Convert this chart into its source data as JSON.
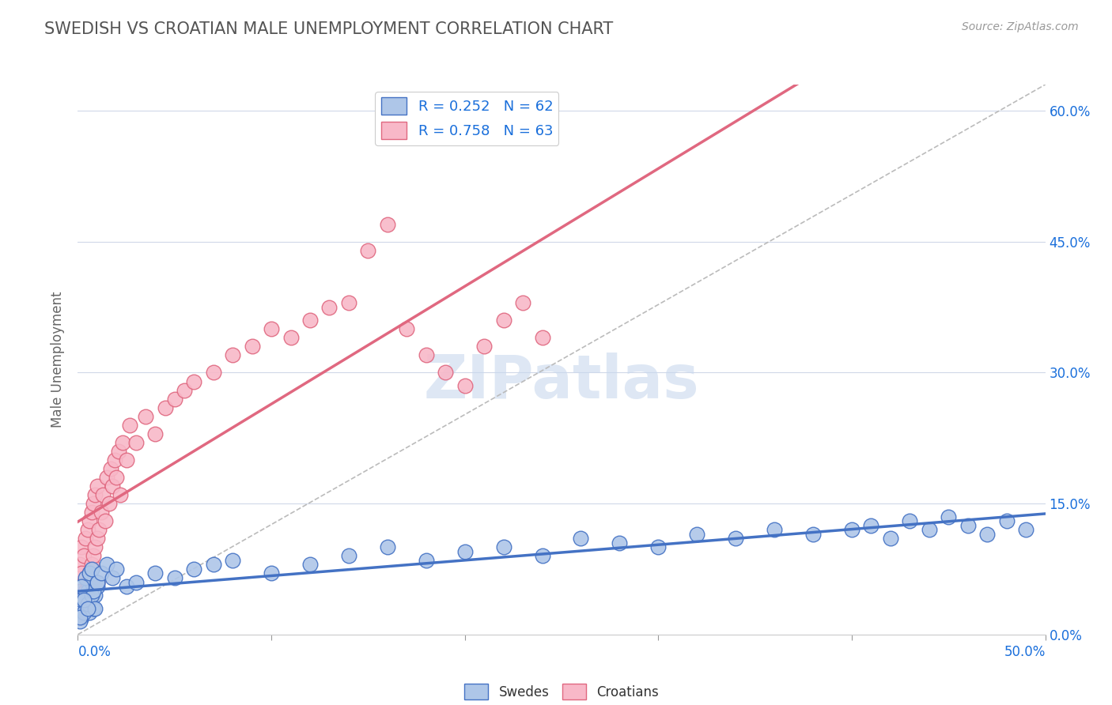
{
  "title": "SWEDISH VS CROATIAN MALE UNEMPLOYMENT CORRELATION CHART",
  "source_text": "Source: ZipAtlas.com",
  "ylabel": "Male Unemployment",
  "xlim": [
    0.0,
    50.0
  ],
  "ylim": [
    0.0,
    63.0
  ],
  "yticks": [
    0.0,
    15.0,
    30.0,
    45.0,
    60.0
  ],
  "ytick_labels": [
    "0.0%",
    "15.0%",
    "30.0%",
    "45.0%",
    "60.0%"
  ],
  "background_color": "#ffffff",
  "grid_color": "#d0d8e8",
  "swede_fill": "#aec6e8",
  "swede_edge": "#4472c4",
  "croatian_fill": "#f8b8c8",
  "croatian_edge": "#e06880",
  "line_swede": "#4472c4",
  "line_croatian": "#e06880",
  "line_dash": "#bbbbbb",
  "legend_color": "#1a6fdb",
  "title_color": "#555555",
  "watermark": "ZIPatlas",
  "swede_R": 0.252,
  "swede_N": 62,
  "croatian_R": 0.758,
  "croatian_N": 63,
  "swedes_x": [
    0.1,
    0.2,
    0.3,
    0.4,
    0.5,
    0.6,
    0.7,
    0.8,
    0.9,
    1.0,
    0.1,
    0.2,
    0.3,
    0.4,
    0.5,
    0.6,
    0.7,
    0.8,
    0.9,
    1.0,
    0.1,
    0.2,
    0.3,
    0.5,
    0.7,
    1.0,
    1.2,
    1.5,
    1.8,
    2.0,
    2.5,
    3.0,
    4.0,
    5.0,
    6.0,
    7.0,
    8.0,
    10.0,
    12.0,
    14.0,
    16.0,
    18.0,
    20.0,
    22.0,
    24.0,
    26.0,
    28.0,
    30.0,
    32.0,
    34.0,
    36.0,
    38.0,
    40.0,
    41.0,
    42.0,
    43.0,
    44.0,
    45.0,
    46.0,
    47.0,
    48.0,
    49.0
  ],
  "swedes_y": [
    3.0,
    2.0,
    4.0,
    3.5,
    5.0,
    2.5,
    6.0,
    3.0,
    4.5,
    5.5,
    1.5,
    4.0,
    2.5,
    6.5,
    3.5,
    7.0,
    4.5,
    5.0,
    3.0,
    6.0,
    2.0,
    5.5,
    4.0,
    3.0,
    7.5,
    6.0,
    7.0,
    8.0,
    6.5,
    7.5,
    5.5,
    6.0,
    7.0,
    6.5,
    7.5,
    8.0,
    8.5,
    7.0,
    8.0,
    9.0,
    10.0,
    8.5,
    9.5,
    10.0,
    9.0,
    11.0,
    10.5,
    10.0,
    11.5,
    11.0,
    12.0,
    11.5,
    12.0,
    12.5,
    11.0,
    13.0,
    12.0,
    13.5,
    12.5,
    11.5,
    13.0,
    12.0
  ],
  "croatians_x": [
    0.1,
    0.1,
    0.1,
    0.2,
    0.2,
    0.2,
    0.3,
    0.3,
    0.4,
    0.4,
    0.5,
    0.5,
    0.6,
    0.6,
    0.7,
    0.7,
    0.8,
    0.8,
    0.9,
    0.9,
    1.0,
    1.0,
    1.0,
    1.1,
    1.2,
    1.3,
    1.4,
    1.5,
    1.6,
    1.7,
    1.8,
    1.9,
    2.0,
    2.1,
    2.2,
    2.3,
    2.5,
    2.7,
    3.0,
    3.5,
    4.0,
    4.5,
    5.0,
    5.5,
    6.0,
    7.0,
    8.0,
    9.0,
    10.0,
    11.0,
    12.0,
    13.0,
    14.0,
    15.0,
    16.0,
    17.0,
    18.0,
    19.0,
    20.0,
    21.0,
    22.0,
    23.0,
    24.0
  ],
  "croatians_y": [
    2.0,
    5.0,
    8.0,
    3.0,
    7.0,
    10.0,
    4.0,
    9.0,
    5.0,
    11.0,
    6.0,
    12.0,
    7.0,
    13.0,
    8.0,
    14.0,
    9.0,
    15.0,
    10.0,
    16.0,
    11.0,
    17.0,
    6.0,
    12.0,
    14.0,
    16.0,
    13.0,
    18.0,
    15.0,
    19.0,
    17.0,
    20.0,
    18.0,
    21.0,
    16.0,
    22.0,
    20.0,
    24.0,
    22.0,
    25.0,
    23.0,
    26.0,
    27.0,
    28.0,
    29.0,
    30.0,
    32.0,
    33.0,
    35.0,
    34.0,
    36.0,
    37.5,
    38.0,
    44.0,
    47.0,
    35.0,
    32.0,
    30.0,
    28.5,
    33.0,
    36.0,
    38.0,
    34.0
  ]
}
